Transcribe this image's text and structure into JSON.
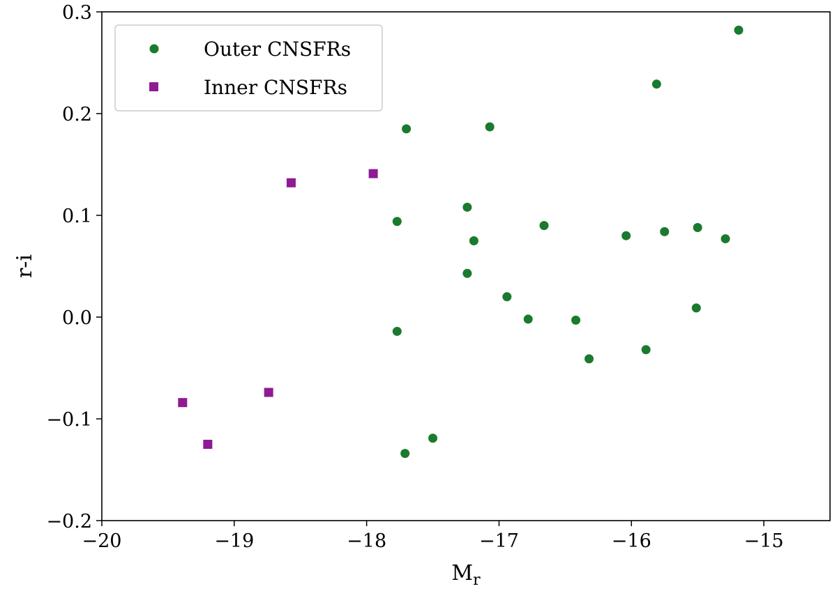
{
  "chart_data": {
    "type": "scatter",
    "title": "",
    "xlabel": "M",
    "xlabel_sub": "r",
    "ylabel": "r-i",
    "xlim": [
      -20,
      -14.5
    ],
    "ylim": [
      -0.2,
      0.3
    ],
    "xticks": [
      -20,
      -19,
      -18,
      -17,
      -16,
      -15
    ],
    "xtick_labels": [
      "−20",
      "−19",
      "−18",
      "−17",
      "−16",
      "−15"
    ],
    "yticks": [
      -0.2,
      -0.1,
      0.0,
      0.1,
      0.2,
      0.3
    ],
    "ytick_labels": [
      "−0.2",
      "−0.1",
      "0.0",
      "0.1",
      "0.2",
      "0.3"
    ],
    "grid": false,
    "legend_position": "top-left",
    "series": [
      {
        "name": "Outer CNSFRs",
        "marker": "circle",
        "color": "#1a7a2e",
        "points": [
          [
            -15.19,
            0.282
          ],
          [
            -15.81,
            0.229
          ],
          [
            -17.7,
            0.185
          ],
          [
            -17.07,
            0.187
          ],
          [
            -17.77,
            0.094
          ],
          [
            -17.24,
            0.108
          ],
          [
            -17.19,
            0.075
          ],
          [
            -16.66,
            0.09
          ],
          [
            -16.04,
            0.08
          ],
          [
            -15.75,
            0.084
          ],
          [
            -15.5,
            0.088
          ],
          [
            -15.29,
            0.077
          ],
          [
            -17.24,
            0.043
          ],
          [
            -16.94,
            0.02
          ],
          [
            -16.78,
            -0.002
          ],
          [
            -16.42,
            -0.003
          ],
          [
            -15.51,
            0.009
          ],
          [
            -17.77,
            -0.014
          ],
          [
            -16.32,
            -0.041
          ],
          [
            -15.89,
            -0.032
          ],
          [
            -17.5,
            -0.119
          ],
          [
            -17.71,
            -0.134
          ]
        ]
      },
      {
        "name": "Inner CNSFRs",
        "marker": "square",
        "color": "#8e1a94",
        "points": [
          [
            -18.57,
            0.132
          ],
          [
            -17.95,
            0.141
          ],
          [
            -19.39,
            -0.084
          ],
          [
            -18.74,
            -0.074
          ],
          [
            -19.2,
            -0.125
          ]
        ]
      }
    ]
  }
}
